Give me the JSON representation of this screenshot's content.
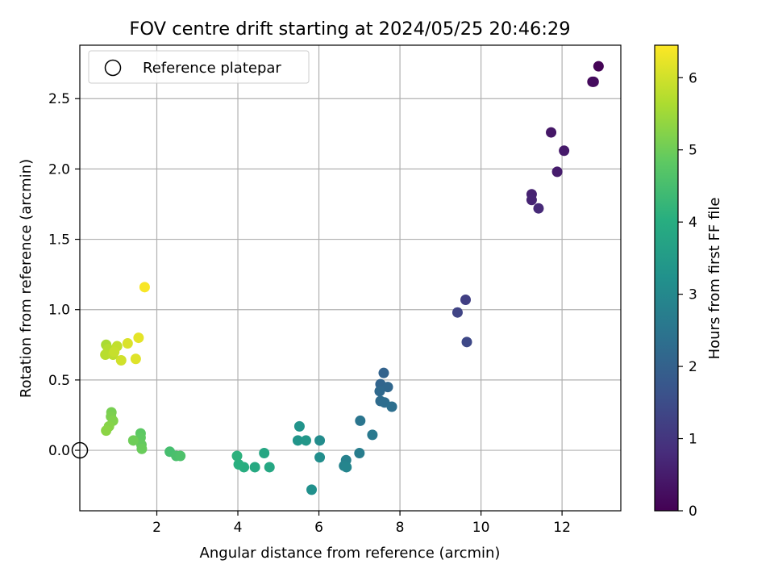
{
  "chart_data": {
    "type": "scatter",
    "title": "FOV centre drift starting at 2024/05/25 20:46:29",
    "xlabel": "Angular distance from reference (arcmin)",
    "ylabel": "Rotation from reference (arcmin)",
    "colorbar_label": "Hours from first FF file",
    "xlim": [
      0.1,
      13.45
    ],
    "ylim": [
      -0.43,
      2.88
    ],
    "clim": [
      0,
      6.45
    ],
    "colormap": "viridis",
    "grid": true,
    "legend_position": "top-left",
    "x_ticks": [
      2,
      4,
      6,
      8,
      10,
      12
    ],
    "y_ticks": [
      0.0,
      0.5,
      1.0,
      1.5,
      2.0,
      2.5
    ],
    "colorbar_ticks": [
      0,
      1,
      2,
      3,
      4,
      5,
      6
    ],
    "legend": [
      {
        "label": "Reference platepar",
        "marker": "hollow-circle"
      }
    ],
    "reference_point": {
      "x": 0.1,
      "y": 0.0
    },
    "series": [
      {
        "points": [
          {
            "x": 12.9,
            "y": 2.73,
            "c": 0.05
          },
          {
            "x": 12.75,
            "y": 2.62,
            "c": 0.15
          },
          {
            "x": 12.78,
            "y": 2.62,
            "c": 0.2
          },
          {
            "x": 11.73,
            "y": 2.26,
            "c": 0.4
          },
          {
            "x": 12.05,
            "y": 2.13,
            "c": 0.45
          },
          {
            "x": 11.88,
            "y": 1.98,
            "c": 0.5
          },
          {
            "x": 11.25,
            "y": 1.82,
            "c": 0.6
          },
          {
            "x": 11.25,
            "y": 1.78,
            "c": 0.65
          },
          {
            "x": 11.42,
            "y": 1.72,
            "c": 0.75
          },
          {
            "x": 9.62,
            "y": 1.07,
            "c": 1.2
          },
          {
            "x": 9.42,
            "y": 0.98,
            "c": 1.3
          },
          {
            "x": 9.65,
            "y": 0.77,
            "c": 1.4
          },
          {
            "x": 7.6,
            "y": 0.55,
            "c": 2.05
          },
          {
            "x": 7.52,
            "y": 0.47,
            "c": 2.1
          },
          {
            "x": 7.7,
            "y": 0.45,
            "c": 2.15
          },
          {
            "x": 7.5,
            "y": 0.42,
            "c": 2.2
          },
          {
            "x": 7.52,
            "y": 0.35,
            "c": 2.25
          },
          {
            "x": 7.62,
            "y": 0.34,
            "c": 2.3
          },
          {
            "x": 7.8,
            "y": 0.31,
            "c": 2.35
          },
          {
            "x": 7.02,
            "y": 0.21,
            "c": 2.5
          },
          {
            "x": 7.32,
            "y": 0.11,
            "c": 2.6
          },
          {
            "x": 7.0,
            "y": -0.02,
            "c": 2.7
          },
          {
            "x": 6.67,
            "y": -0.07,
            "c": 2.8
          },
          {
            "x": 6.62,
            "y": -0.11,
            "c": 2.85
          },
          {
            "x": 6.68,
            "y": -0.12,
            "c": 2.9
          },
          {
            "x": 6.02,
            "y": 0.07,
            "c": 3.1
          },
          {
            "x": 6.02,
            "y": -0.05,
            "c": 3.15
          },
          {
            "x": 5.82,
            "y": -0.28,
            "c": 3.2
          },
          {
            "x": 5.52,
            "y": 0.17,
            "c": 3.3
          },
          {
            "x": 5.48,
            "y": 0.07,
            "c": 3.35
          },
          {
            "x": 5.68,
            "y": 0.07,
            "c": 3.4
          },
          {
            "x": 4.65,
            "y": -0.02,
            "c": 3.8
          },
          {
            "x": 4.78,
            "y": -0.12,
            "c": 3.85
          },
          {
            "x": 4.42,
            "y": -0.12,
            "c": 3.9
          },
          {
            "x": 4.15,
            "y": -0.12,
            "c": 4.0
          },
          {
            "x": 4.02,
            "y": -0.1,
            "c": 4.05
          },
          {
            "x": 3.98,
            "y": -0.04,
            "c": 4.1
          },
          {
            "x": 2.32,
            "y": -0.01,
            "c": 4.5
          },
          {
            "x": 2.48,
            "y": -0.04,
            "c": 4.55
          },
          {
            "x": 2.58,
            "y": -0.04,
            "c": 4.6
          },
          {
            "x": 1.6,
            "y": 0.12,
            "c": 4.8
          },
          {
            "x": 1.6,
            "y": 0.09,
            "c": 4.85
          },
          {
            "x": 1.62,
            "y": 0.04,
            "c": 4.9
          },
          {
            "x": 1.63,
            "y": 0.01,
            "c": 4.95
          },
          {
            "x": 1.42,
            "y": 0.07,
            "c": 5.0
          },
          {
            "x": 0.88,
            "y": 0.27,
            "c": 5.1
          },
          {
            "x": 0.87,
            "y": 0.24,
            "c": 5.15
          },
          {
            "x": 0.92,
            "y": 0.21,
            "c": 5.2
          },
          {
            "x": 0.82,
            "y": 0.17,
            "c": 5.25
          },
          {
            "x": 0.75,
            "y": 0.14,
            "c": 5.3
          },
          {
            "x": 0.75,
            "y": 0.75,
            "c": 5.6
          },
          {
            "x": 0.8,
            "y": 0.72,
            "c": 5.7
          },
          {
            "x": 0.73,
            "y": 0.68,
            "c": 5.75
          },
          {
            "x": 0.92,
            "y": 0.68,
            "c": 5.8
          },
          {
            "x": 1.02,
            "y": 0.74,
            "c": 5.85
          },
          {
            "x": 0.95,
            "y": 0.7,
            "c": 5.9
          },
          {
            "x": 1.12,
            "y": 0.64,
            "c": 6.0
          },
          {
            "x": 1.28,
            "y": 0.76,
            "c": 6.1
          },
          {
            "x": 1.48,
            "y": 0.65,
            "c": 6.15
          },
          {
            "x": 1.55,
            "y": 0.8,
            "c": 6.2
          },
          {
            "x": 1.7,
            "y": 1.16,
            "c": 6.4
          }
        ]
      }
    ]
  }
}
